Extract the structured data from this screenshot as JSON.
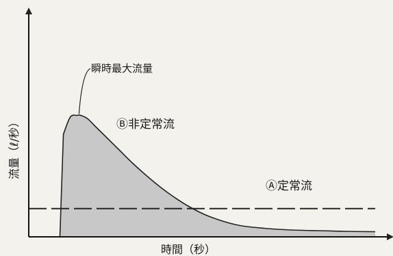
{
  "chart_data": {
    "type": "area",
    "xlabel": "時間（秒）",
    "ylabel": "流量（ℓ/秒）",
    "xlim": [
      0,
      100
    ],
    "ylim": [
      0,
      100
    ],
    "grid": false,
    "series": [
      {
        "name": "Ⓑ非定常流",
        "style": "filled-area",
        "x": [
          9,
          10,
          12,
          14,
          15,
          17,
          19,
          22,
          26,
          30,
          35,
          40,
          46,
          52,
          60,
          68,
          76,
          84,
          92,
          100
        ],
        "y": [
          0,
          60,
          70,
          71,
          71,
          69,
          65,
          59,
          51,
          43,
          34,
          26,
          18,
          12,
          7,
          5,
          4,
          3.6,
          3.2,
          3
        ]
      },
      {
        "name": "Ⓐ定常流",
        "style": "dashed-line",
        "x": [
          0,
          100
        ],
        "y": [
          16.5,
          16.5
        ]
      }
    ],
    "annotations": [
      {
        "text": "瞬時最大流量",
        "points_to": {
          "x": 14.5,
          "y": 71
        }
      }
    ],
    "colors": {
      "fill": "#c8c8c8",
      "line": "#222222",
      "background": "#f4f2ec"
    }
  }
}
